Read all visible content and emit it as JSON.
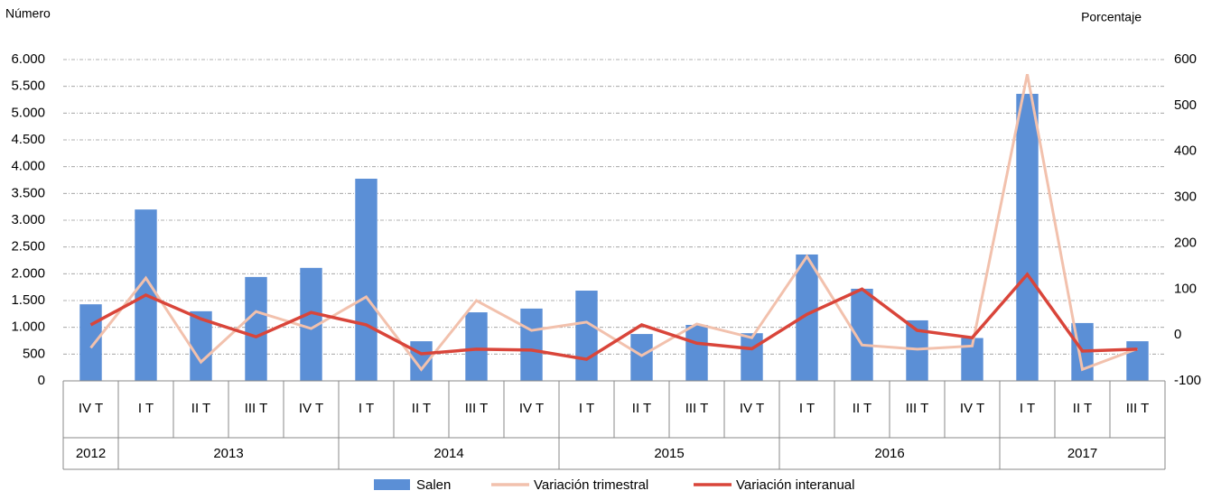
{
  "chart_data": {
    "type": "bar-line",
    "y_label": "Número",
    "y2_label": "Porcentaje",
    "categories": [
      "IV T",
      "I T",
      "II T",
      "III T",
      "IV T",
      "I T",
      "II T",
      "III T",
      "IV T",
      "I T",
      "II T",
      "III T",
      "IV T",
      "I T",
      "II T",
      "III T",
      "IV T",
      "I T",
      "II T",
      "III T"
    ],
    "groups": [
      {
        "label": "2012",
        "count": 1
      },
      {
        "label": "2013",
        "count": 4
      },
      {
        "label": "2014",
        "count": 4
      },
      {
        "label": "2015",
        "count": 4
      },
      {
        "label": "2016",
        "count": 4
      },
      {
        "label": "2017",
        "count": 3
      }
    ],
    "series": [
      {
        "name": "Salen",
        "kind": "bar",
        "color": "#5b8fd6",
        "values": [
          1430,
          3200,
          1300,
          1940,
          2110,
          3775,
          740,
          1280,
          1350,
          1685,
          875,
          1045,
          890,
          2360,
          1720,
          1130,
          800,
          5360,
          1080,
          740
        ]
      },
      {
        "name": "Variación trimestral",
        "kind": "line",
        "axis": "y2",
        "color": "#f2c1ad",
        "values": [
          -28,
          124,
          -59,
          51,
          14,
          83,
          -75,
          75,
          10,
          28,
          -45,
          24,
          -6,
          171,
          -22,
          -31,
          -24,
          568,
          -75,
          -30
        ]
      },
      {
        "name": "Variación interanual",
        "kind": "line",
        "axis": "y2",
        "color": "#d9453a",
        "values": [
          22,
          87,
          35,
          -4,
          49,
          22,
          -41,
          -31,
          -33,
          -53,
          22,
          -18,
          -30,
          45,
          100,
          10,
          -6,
          132,
          -35,
          -31
        ]
      }
    ],
    "ylim": [
      0,
      6000
    ],
    "yticks": [
      0,
      500,
      {
        "value": 1000,
        "label": "1.000"
      },
      {
        "value": 1500,
        "label": "1.500"
      },
      {
        "value": 2000,
        "label": "2.000"
      },
      {
        "value": 2500,
        "label": "2.500"
      },
      {
        "value": 3000,
        "label": "3.000"
      },
      {
        "value": 3500,
        "label": "3.500"
      },
      {
        "value": 4000,
        "label": "4.000"
      },
      {
        "value": 4500,
        "label": "4.500"
      },
      {
        "value": 5000,
        "label": "5.000"
      },
      {
        "value": 5500,
        "label": "5.500"
      },
      {
        "value": 6000,
        "label": "6.000"
      }
    ],
    "y2lim": [
      -100,
      600
    ],
    "y2ticks": [
      -100,
      0,
      100,
      200,
      300,
      400,
      500,
      600
    ],
    "grid": true
  }
}
